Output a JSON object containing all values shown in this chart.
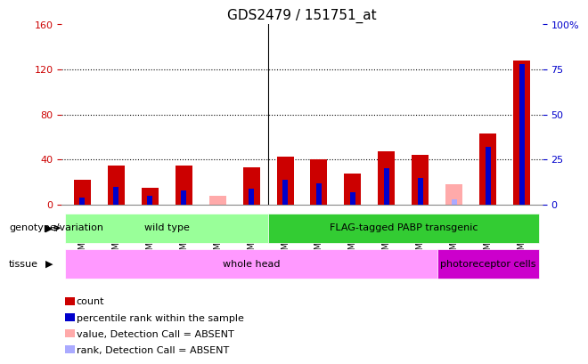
{
  "title": "GDS2479 / 151751_at",
  "samples": [
    "GSM30824",
    "GSM30825",
    "GSM30826",
    "GSM30827",
    "GSM30828",
    "GSM30830",
    "GSM30832",
    "GSM30833",
    "GSM30834",
    "GSM30835",
    "GSM30900",
    "GSM30901",
    "GSM30902",
    "GSM30903"
  ],
  "count_values": [
    22,
    35,
    15,
    35,
    0,
    33,
    43,
    40,
    28,
    47,
    44,
    0,
    63,
    128
  ],
  "percentile_values": [
    4,
    10,
    5,
    8,
    0,
    9,
    14,
    12,
    7,
    20,
    15,
    0,
    32,
    78
  ],
  "absent_count": [
    0,
    0,
    0,
    0,
    8,
    0,
    0,
    0,
    0,
    0,
    0,
    18,
    0,
    0
  ],
  "absent_rank": [
    0,
    0,
    0,
    0,
    0,
    0,
    0,
    0,
    0,
    0,
    0,
    3,
    0,
    0
  ],
  "count_color": "#cc0000",
  "percentile_color": "#0000cc",
  "absent_count_color": "#ffaaaa",
  "absent_rank_color": "#aaaaff",
  "ylim_left": [
    0,
    160
  ],
  "ylim_right": [
    0,
    100
  ],
  "yticks_left": [
    0,
    40,
    80,
    120,
    160
  ],
  "ytick_labels_left": [
    "0",
    "40",
    "80",
    "120",
    "160"
  ],
  "yticks_right": [
    0,
    25,
    50,
    75,
    100
  ],
  "ytick_labels_right": [
    "0",
    "25",
    "50",
    "75",
    "100%"
  ],
  "bar_width": 0.5,
  "genotype_groups": [
    {
      "label": "wild type",
      "start": 0,
      "end": 6,
      "color": "#99ff99"
    },
    {
      "label": "FLAG-tagged PABP transgenic",
      "start": 6,
      "end": 14,
      "color": "#33cc33"
    }
  ],
  "tissue_groups": [
    {
      "label": "whole head",
      "start": 0,
      "end": 11,
      "color": "#ff99ff"
    },
    {
      "label": "photoreceptor cells",
      "start": 11,
      "end": 14,
      "color": "#cc00cc"
    }
  ],
  "genotype_label": "genotype/variation",
  "tissue_label": "tissue",
  "legend_items": [
    {
      "label": "count",
      "color": "#cc0000"
    },
    {
      "label": "percentile rank within the sample",
      "color": "#0000cc"
    },
    {
      "label": "value, Detection Call = ABSENT",
      "color": "#ffaaaa"
    },
    {
      "label": "rank, Detection Call = ABSENT",
      "color": "#aaaaff"
    }
  ],
  "grid_color": "#000000",
  "background_color": "#ffffff",
  "left_axis_color": "#cc0000",
  "right_axis_color": "#0000cc"
}
